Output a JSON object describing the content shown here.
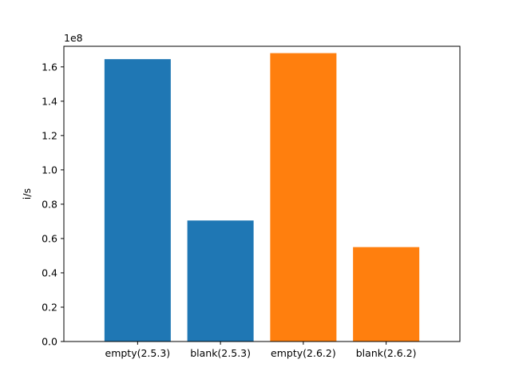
{
  "chart_data": {
    "type": "bar",
    "categories": [
      "empty(2.5.3)",
      "blank(2.5.3)",
      "empty(2.6.2)",
      "blank(2.6.2)"
    ],
    "values": [
      164500000,
      70500000,
      168000000,
      55000000
    ],
    "bar_colors": [
      "#1f77b4",
      "#1f77b4",
      "#ff7f0e",
      "#ff7f0e"
    ],
    "title": "",
    "xlabel": "",
    "ylabel": "i/s",
    "ylim": [
      0,
      172000000
    ],
    "y_offset_text": "1e8",
    "y_tick_values": [
      0,
      20000000,
      40000000,
      60000000,
      80000000,
      100000000,
      120000000,
      140000000,
      160000000
    ],
    "y_tick_labels": [
      "0.0",
      "0.2",
      "0.4",
      "0.6",
      "0.8",
      "1.0",
      "1.2",
      "1.4",
      "1.6"
    ],
    "grid": false,
    "legend": "none"
  }
}
